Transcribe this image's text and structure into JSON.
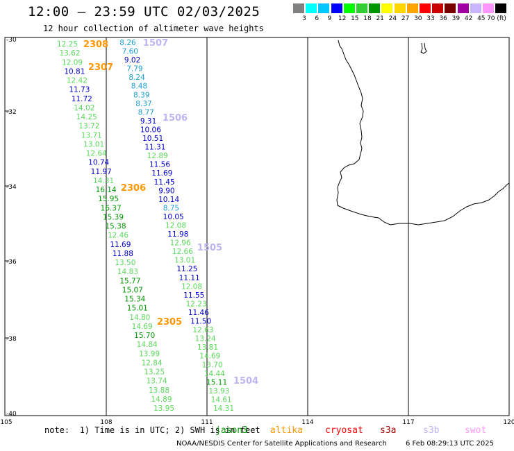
{
  "header": {
    "title": "12:00 – 23:59 UTC 02/03/2025",
    "subtitle": "12 hour collection of altimeter wave heights"
  },
  "colorbar": {
    "labels": [
      "3",
      "6",
      "9",
      "12",
      "15",
      "18",
      "21",
      "24",
      "27",
      "30",
      "33",
      "36",
      "39",
      "42",
      "45",
      "70 (ft)"
    ],
    "colors": [
      "#808080",
      "#00ffff",
      "#00c8ff",
      "#0000ff",
      "#00ff00",
      "#32cd32",
      "#009600",
      "#ffff00",
      "#ffd700",
      "#ffa500",
      "#ff0000",
      "#c80000",
      "#780000",
      "#a000a0",
      "#c8b4ff",
      "#ff96ff",
      "#000000"
    ]
  },
  "axes": {
    "lon_labels": [
      "105",
      "108",
      "111",
      "114",
      "117",
      "120"
    ],
    "lat_labels": [
      "-30",
      "-32",
      "-34",
      "-36",
      "-38",
      "-40"
    ]
  },
  "colors": {
    "lightgreen": "#5ada5a",
    "green": "#009600",
    "blue": "#0000cc",
    "cyan": "#1ea0d2",
    "orange": "#ff9600",
    "lavender": "#c0b4f0"
  },
  "passes": [
    {
      "id": "2308",
      "color": "orange",
      "label_pos": "upper-left"
    },
    {
      "id": "2307",
      "color": "orange",
      "label_pos": "upper-left"
    },
    {
      "id": "2306",
      "color": "orange",
      "label_pos": "middle-left"
    },
    {
      "id": "2305",
      "color": "orange",
      "label_pos": "lower-middle"
    },
    {
      "id": "1507",
      "color": "lavender",
      "label_pos": "top"
    },
    {
      "id": "1506",
      "color": "lavender",
      "label_pos": "upper-middle"
    },
    {
      "id": "1505",
      "color": "lavender",
      "label_pos": "middle"
    },
    {
      "id": "1504",
      "color": "lavender",
      "label_pos": "bottom"
    }
  ],
  "readings": {
    "left_track": [
      [
        "12.25",
        "lightgreen"
      ],
      [
        "13.62",
        "lightgreen"
      ],
      [
        "12.09",
        "lightgreen"
      ],
      [
        "10.81",
        "blue"
      ],
      [
        "12.42",
        "lightgreen"
      ],
      [
        "11.73",
        "blue"
      ],
      [
        "11.72",
        "blue"
      ],
      [
        "14.02",
        "lightgreen"
      ],
      [
        "14.25",
        "lightgreen"
      ],
      [
        "13.72",
        "lightgreen"
      ],
      [
        "13.71",
        "lightgreen"
      ],
      [
        "13.01",
        "lightgreen"
      ],
      [
        "12.64",
        "lightgreen"
      ],
      [
        "10.74",
        "blue"
      ],
      [
        "11.97",
        "blue"
      ],
      [
        "14.31",
        "lightgreen"
      ],
      [
        "16.14",
        "green"
      ],
      [
        "15.95",
        "green"
      ],
      [
        "16.37",
        "green"
      ],
      [
        "15.39",
        "green"
      ],
      [
        "15.38",
        "green"
      ],
      [
        "12.46",
        "lightgreen"
      ],
      [
        "11.69",
        "blue"
      ],
      [
        "11.88",
        "blue"
      ],
      [
        "13.50",
        "lightgreen"
      ],
      [
        "14.83",
        "lightgreen"
      ],
      [
        "15.77",
        "green"
      ],
      [
        "15.07",
        "green"
      ],
      [
        "15.34",
        "green"
      ],
      [
        "15.01",
        "green"
      ],
      [
        "14.80",
        "lightgreen"
      ],
      [
        "14.69",
        "lightgreen"
      ],
      [
        "15.70",
        "green"
      ],
      [
        "14.84",
        "lightgreen"
      ],
      [
        "13.99",
        "lightgreen"
      ],
      [
        "12.84",
        "lightgreen"
      ],
      [
        "13.25",
        "lightgreen"
      ],
      [
        "13.74",
        "lightgreen"
      ],
      [
        "13.88",
        "lightgreen"
      ],
      [
        "14.89",
        "lightgreen"
      ],
      [
        "13.95",
        "lightgreen"
      ]
    ],
    "middle_track": [
      [
        "8.26",
        "cyan"
      ],
      [
        "7.60",
        "cyan"
      ],
      [
        "9.02",
        "blue"
      ],
      [
        "7.79",
        "cyan"
      ],
      [
        "8.24",
        "cyan"
      ],
      [
        "8.48",
        "cyan"
      ],
      [
        "8.39",
        "cyan"
      ],
      [
        "8.37",
        "cyan"
      ],
      [
        "8.77",
        "cyan"
      ],
      [
        "9.31",
        "blue"
      ],
      [
        "10.06",
        "blue"
      ],
      [
        "10.51",
        "blue"
      ],
      [
        "11.31",
        "blue"
      ],
      [
        "12.89",
        "lightgreen"
      ],
      [
        "11.56",
        "blue"
      ],
      [
        "11.69",
        "blue"
      ],
      [
        "11.45",
        "blue"
      ],
      [
        "9.90",
        "blue"
      ],
      [
        "10.14",
        "blue"
      ],
      [
        "8.75",
        "cyan"
      ],
      [
        "10.05",
        "blue"
      ],
      [
        "12.08",
        "lightgreen"
      ],
      [
        "11.98",
        "blue"
      ],
      [
        "12.96",
        "lightgreen"
      ],
      [
        "12.66",
        "lightgreen"
      ],
      [
        "13.01",
        "lightgreen"
      ],
      [
        "11.25",
        "blue"
      ],
      [
        "11.11",
        "blue"
      ],
      [
        "12.08",
        "lightgreen"
      ],
      [
        "11.55",
        "blue"
      ],
      [
        "12.23",
        "lightgreen"
      ],
      [
        "11.46",
        "blue"
      ],
      [
        "11.50",
        "blue"
      ],
      [
        "12.63",
        "lightgreen"
      ],
      [
        "13.24",
        "lightgreen"
      ],
      [
        "13.81",
        "lightgreen"
      ],
      [
        "14.69",
        "lightgreen"
      ],
      [
        "13.70",
        "lightgreen"
      ],
      [
        "14.44",
        "lightgreen"
      ],
      [
        "15.11",
        "green"
      ],
      [
        "13.93",
        "lightgreen"
      ],
      [
        "14.61",
        "lightgreen"
      ],
      [
        "14.31",
        "lightgreen"
      ]
    ]
  },
  "note": "note:  1) Time is in UTC; 2) SWH is in feet",
  "satellites": [
    {
      "name": "jason3",
      "color": "#009600"
    },
    {
      "name": "altika",
      "color": "#ff9600"
    },
    {
      "name": "cryosat",
      "color": "#ff0000"
    },
    {
      "name": "s3a",
      "color": "#a00000"
    },
    {
      "name": "s3b",
      "color": "#c0b4f0"
    },
    {
      "name": "swot",
      "color": "#ff96ff"
    }
  ],
  "footer": {
    "center": "NOAA/NESDIS Center for Satellite Applications and Research",
    "timestamp": "6 Feb 08:29:13 UTC 2025"
  }
}
